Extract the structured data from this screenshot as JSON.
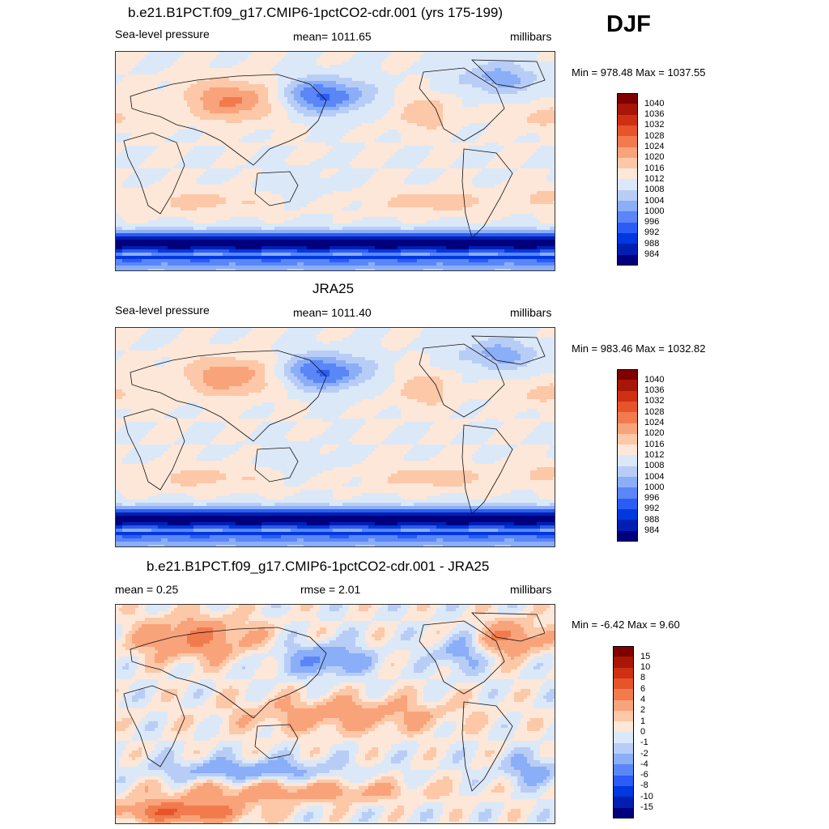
{
  "season": "DJF",
  "panels": [
    {
      "title": "b.e21.B1PCT.f09_g17.CMIP6-1pctCO2-cdr.001 (yrs 175-199)",
      "left": "Sea-level pressure",
      "center": "mean= 1011.65",
      "right": "millibars",
      "minmax": "Min = 978.48 Max = 1037.55"
    },
    {
      "title": "JRA25",
      "left": "Sea-level pressure",
      "center": "mean= 1011.40",
      "right": "millibars",
      "minmax": "Min = 983.46 Max = 1032.82"
    },
    {
      "title": "b.e21.B1PCT.f09_g17.CMIP6-1pctCO2-cdr.001 - JRA25",
      "left": "mean =   0.25",
      "center": "rmse =   2.01",
      "right": "millibars",
      "minmax": "Min =  -6.42 Max =   9.60"
    }
  ],
  "chart_data": [
    {
      "type": "heatmap",
      "title": "b.e21.B1PCT.f09_g17.CMIP6-1pctCO2-cdr.001 (yrs 175-199)",
      "variable": "Sea-level pressure",
      "units": "millibars",
      "mean": 1011.65,
      "min": 978.48,
      "max": 1037.55,
      "levels": [
        984,
        988,
        992,
        996,
        1000,
        1004,
        1008,
        1012,
        1016,
        1020,
        1024,
        1028,
        1032,
        1036,
        1040
      ],
      "colors": [
        "#00007f",
        "#001fb2",
        "#0038e0",
        "#2b5cf5",
        "#5a86f7",
        "#8aaef8",
        "#b8cdf6",
        "#dbe8f8",
        "#fde7d8",
        "#fcc8a8",
        "#f9a37a",
        "#f27b4e",
        "#e6552a",
        "#cf2f12",
        "#a81608",
        "#7f0000"
      ]
    },
    {
      "type": "heatmap",
      "title": "JRA25",
      "variable": "Sea-level pressure",
      "units": "millibars",
      "mean": 1011.4,
      "min": 983.46,
      "max": 1032.82,
      "levels": [
        984,
        988,
        992,
        996,
        1000,
        1004,
        1008,
        1012,
        1016,
        1020,
        1024,
        1028,
        1032,
        1036,
        1040
      ],
      "colors": [
        "#00007f",
        "#001fb2",
        "#0038e0",
        "#2b5cf5",
        "#5a86f7",
        "#8aaef8",
        "#b8cdf6",
        "#dbe8f8",
        "#fde7d8",
        "#fcc8a8",
        "#f9a37a",
        "#f27b4e",
        "#e6552a",
        "#cf2f12",
        "#a81608",
        "#7f0000"
      ]
    },
    {
      "type": "heatmap",
      "title": "b.e21.B1PCT.f09_g17.CMIP6-1pctCO2-cdr.001 - JRA25",
      "units": "millibars",
      "mean": 0.25,
      "rmse": 2.01,
      "min": -6.42,
      "max": 9.6,
      "levels": [
        -15,
        -10,
        -8,
        -6,
        -4,
        -2,
        -1,
        0,
        1,
        2,
        4,
        6,
        8,
        10,
        15
      ],
      "colors": [
        "#00007f",
        "#001fb2",
        "#0038e0",
        "#2b5cf5",
        "#5a86f7",
        "#8aaef8",
        "#b8cdf6",
        "#dbe8f8",
        "#fde7d8",
        "#fcc8a8",
        "#f9a37a",
        "#f27b4e",
        "#e6552a",
        "#cf2f12",
        "#a81608",
        "#7f0000"
      ]
    }
  ]
}
